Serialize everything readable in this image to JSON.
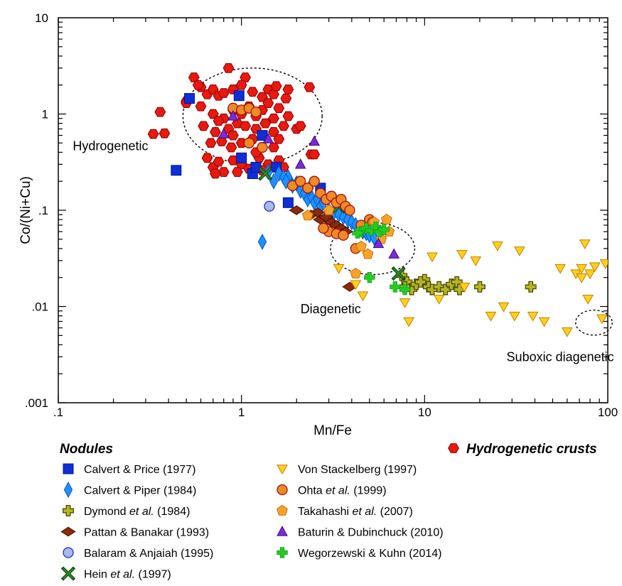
{
  "chart_data": {
    "type": "scatter",
    "title": "",
    "xlabel": "Mn/Fe",
    "ylabel": "Co/(Ni+Cu)",
    "xscale": "log",
    "yscale": "log",
    "xlim": [
      0.1,
      100
    ],
    "ylim": [
      0.001,
      10
    ],
    "x_ticks": [
      {
        "value": 0.1,
        "label": ".1"
      },
      {
        "value": 1,
        "label": "1"
      },
      {
        "value": 10,
        "label": "10"
      },
      {
        "value": 100,
        "label": "100"
      }
    ],
    "y_ticks": [
      {
        "value": 0.001,
        "label": ".001"
      },
      {
        "value": 0.01,
        "label": ".01"
      },
      {
        "value": 0.1,
        "label": ".1"
      },
      {
        "value": 1,
        "label": "1"
      },
      {
        "value": 10,
        "label": "10"
      }
    ],
    "grid": false,
    "legend_position": "bottom",
    "legend_groups": {
      "nodules": "Nodules",
      "crusts": "Hydrogenetic crusts"
    },
    "regions": [
      {
        "label": "Hydrogenetic",
        "cx": 1.15,
        "cy": 0.95,
        "rx_decades": 0.38,
        "ry_decades": 0.5,
        "label_x": 0.12,
        "label_y": 0.42
      },
      {
        "label": "Diagenetic",
        "cx": 5.2,
        "cy": 0.04,
        "rx_decades": 0.23,
        "ry_decades": 0.27,
        "label_x": 2.1,
        "label_y": 0.0085
      },
      {
        "label": "Suboxic diagenetic",
        "cx": 84,
        "cy": 0.0068,
        "rx_decades": 0.1,
        "ry_decades": 0.13,
        "label_x": 28,
        "label_y": 0.0027
      }
    ],
    "series": [
      {
        "name": "Hydrogenetic crusts",
        "name_italic": "",
        "name_end": "",
        "group": "crusts",
        "marker": "hexagon",
        "color": "#e8190f",
        "edge": "#8b0000",
        "points": [
          [
            0.33,
            0.62
          ],
          [
            0.36,
            1.05
          ],
          [
            0.38,
            0.63
          ],
          [
            0.5,
            1.35
          ],
          [
            0.55,
            2.4
          ],
          [
            0.6,
            1.9
          ],
          [
            0.65,
            1.6
          ],
          [
            0.7,
            1.8
          ],
          [
            0.75,
            1.55
          ],
          [
            0.8,
            1.65
          ],
          [
            0.85,
            3.0
          ],
          [
            0.9,
            1.8
          ],
          [
            1.05,
            2.4
          ],
          [
            1.15,
            1.7
          ],
          [
            1.3,
            1.5
          ],
          [
            1.4,
            1.8
          ],
          [
            1.5,
            1.6
          ],
          [
            1.75,
            1.45
          ],
          [
            1.55,
            1.95
          ],
          [
            1.8,
            1.8
          ],
          [
            0.6,
            1.2
          ],
          [
            0.7,
            1.0
          ],
          [
            0.8,
            0.9
          ],
          [
            0.9,
            1.1
          ],
          [
            1.0,
            1.0
          ],
          [
            1.1,
            1.2
          ],
          [
            1.2,
            0.95
          ],
          [
            1.3,
            1.1
          ],
          [
            1.4,
            1.3
          ],
          [
            1.5,
            0.9
          ],
          [
            1.6,
            1.15
          ],
          [
            1.8,
            0.95
          ],
          [
            0.62,
            0.75
          ],
          [
            0.72,
            0.65
          ],
          [
            0.85,
            0.7
          ],
          [
            0.95,
            0.8
          ],
          [
            1.05,
            0.75
          ],
          [
            1.2,
            0.7
          ],
          [
            1.35,
            0.8
          ],
          [
            1.5,
            0.65
          ],
          [
            1.6,
            0.55
          ],
          [
            2.0,
            0.7
          ],
          [
            2.1,
            0.75
          ],
          [
            0.68,
            0.5
          ],
          [
            0.78,
            0.52
          ],
          [
            0.88,
            0.45
          ],
          [
            1.0,
            0.5
          ],
          [
            1.15,
            0.55
          ],
          [
            1.3,
            0.45
          ],
          [
            1.5,
            0.45
          ],
          [
            0.65,
            0.35
          ],
          [
            0.7,
            0.28
          ],
          [
            0.75,
            0.32
          ],
          [
            0.8,
            0.25
          ],
          [
            0.9,
            0.33
          ],
          [
            1.0,
            0.3
          ],
          [
            1.1,
            0.27
          ],
          [
            1.25,
            0.35
          ],
          [
            1.4,
            0.3
          ],
          [
            1.6,
            0.33
          ],
          [
            1.7,
            0.28
          ],
          [
            0.72,
            0.24
          ],
          [
            0.95,
            0.25
          ],
          [
            1.3,
            0.26
          ],
          [
            2.4,
            0.38
          ],
          [
            2.5,
            0.38
          ],
          [
            2.35,
            1.9
          ],
          [
            0.5,
            1.3
          ],
          [
            0.58,
            2.0
          ],
          [
            1.0,
            2.0
          ],
          [
            0.9,
            0.6
          ],
          [
            1.2,
            0.4
          ],
          [
            0.75,
            0.85
          ],
          [
            1.7,
            0.75
          ]
        ]
      },
      {
        "name": "Calvert & Price (1977)",
        "name_italic": "",
        "name_end": "",
        "group": "nodules",
        "marker": "square",
        "color": "#0d2ed9",
        "edge": "#001a80",
        "points": [
          [
            0.44,
            0.26
          ],
          [
            0.52,
            1.45
          ],
          [
            0.97,
            1.55
          ],
          [
            1.0,
            0.35
          ],
          [
            1.15,
            0.24
          ],
          [
            1.2,
            0.28
          ],
          [
            1.3,
            0.6
          ],
          [
            1.55,
            0.28
          ],
          [
            1.8,
            0.12
          ],
          [
            2.7,
            0.17
          ],
          [
            3.5,
            0.11
          ]
        ]
      },
      {
        "name": "Calvert & Piper (1984)",
        "name_italic": "",
        "name_end": "",
        "group": "nodules",
        "marker": "diamond",
        "color": "#1e90ff",
        "edge": "#0055cc",
        "points": [
          [
            1.3,
            0.047
          ],
          [
            1.4,
            0.25
          ],
          [
            1.5,
            0.2
          ],
          [
            1.6,
            0.24
          ],
          [
            1.7,
            0.22
          ],
          [
            1.8,
            0.22
          ],
          [
            1.9,
            0.18
          ],
          [
            2.0,
            0.19
          ],
          [
            2.1,
            0.16
          ],
          [
            2.2,
            0.15
          ],
          [
            2.3,
            0.13
          ],
          [
            2.4,
            0.14
          ],
          [
            2.5,
            0.12
          ],
          [
            2.6,
            0.13
          ],
          [
            2.7,
            0.11
          ],
          [
            2.8,
            0.12
          ],
          [
            3.0,
            0.1
          ],
          [
            3.2,
            0.095
          ],
          [
            3.4,
            0.09
          ],
          [
            3.6,
            0.085
          ],
          [
            3.8,
            0.08
          ],
          [
            4.0,
            0.075
          ],
          [
            4.2,
            0.07
          ],
          [
            4.4,
            0.065
          ],
          [
            4.6,
            0.06
          ],
          [
            4.8,
            0.058
          ],
          [
            5.0,
            0.055
          ],
          [
            5.3,
            0.052
          ],
          [
            1.75,
            0.2
          ],
          [
            2.35,
            0.17
          ]
        ]
      },
      {
        "name": "Dymond ",
        "name_italic": "et al.",
        "name_end": " (1984)",
        "group": "nodules",
        "marker": "cross",
        "color": "#b5b524",
        "edge": "#4a4a00",
        "points": [
          [
            7.5,
            0.021
          ],
          [
            8.0,
            0.018
          ],
          [
            8.5,
            0.015
          ],
          [
            9.0,
            0.017
          ],
          [
            10.0,
            0.019
          ],
          [
            10.5,
            0.016
          ],
          [
            11.0,
            0.015
          ],
          [
            12.0,
            0.016
          ],
          [
            13.0,
            0.015
          ],
          [
            14.0,
            0.017
          ],
          [
            15.0,
            0.018
          ],
          [
            15.5,
            0.015
          ],
          [
            20.0,
            0.016
          ],
          [
            38.0,
            0.016
          ],
          [
            7.8,
            0.016
          ],
          [
            9.5,
            0.018
          ]
        ]
      },
      {
        "name": "Pattan & Banakar (1993)",
        "name_italic": "",
        "name_end": "",
        "group": "nodules",
        "marker": "diamond-wide",
        "color": "#8b2a0e",
        "edge": "#4a1000",
        "points": [
          [
            2.0,
            0.1
          ],
          [
            2.4,
            0.09
          ],
          [
            2.7,
            0.08
          ],
          [
            2.9,
            0.085
          ],
          [
            3.1,
            0.075
          ],
          [
            3.3,
            0.07
          ],
          [
            3.5,
            0.065
          ],
          [
            3.7,
            0.06
          ],
          [
            3.9,
            0.016
          ],
          [
            2.6,
            0.095
          ]
        ]
      },
      {
        "name": "Balaram & Anjaiah (1995)",
        "name_italic": "",
        "name_end": "",
        "group": "nodules",
        "marker": "circle",
        "color": "#a8b8f0",
        "edge": "#2233aa",
        "points": [
          [
            1.42,
            0.11
          ]
        ]
      },
      {
        "name": "Hein ",
        "name_italic": "et al.",
        "name_end": " (1997)",
        "group": "nodules",
        "marker": "x",
        "color": "#2e8b2e",
        "edge": "#145214",
        "points": [
          [
            1.35,
            0.24
          ],
          [
            3.4,
            0.11
          ],
          [
            7.2,
            0.022
          ]
        ]
      },
      {
        "name": "Von Stackelberg (1997)",
        "name_italic": "",
        "name_end": "",
        "group": "nodules",
        "marker": "triangle-down",
        "color": "#ffd21a",
        "edge": "#cc7a00",
        "points": [
          [
            3.4,
            0.025
          ],
          [
            4.2,
            0.017
          ],
          [
            4.6,
            0.013
          ],
          [
            7.8,
            0.011
          ],
          [
            8.2,
            0.007
          ],
          [
            11.0,
            0.033
          ],
          [
            12.0,
            0.012
          ],
          [
            16.0,
            0.035
          ],
          [
            16.5,
            0.016
          ],
          [
            19.0,
            0.03
          ],
          [
            23.0,
            0.008
          ],
          [
            25.0,
            0.043
          ],
          [
            27.0,
            0.01
          ],
          [
            31.0,
            0.008
          ],
          [
            33.0,
            0.038
          ],
          [
            39.0,
            0.008
          ],
          [
            45.0,
            0.007
          ],
          [
            55.0,
            0.025
          ],
          [
            60.0,
            0.0055
          ],
          [
            67.0,
            0.022
          ],
          [
            72.0,
            0.025
          ],
          [
            75.0,
            0.045
          ],
          [
            78.0,
            0.012
          ],
          [
            80.0,
            0.022
          ],
          [
            85.0,
            0.026
          ],
          [
            93.0,
            0.0075
          ],
          [
            97.0,
            0.028
          ],
          [
            72.0,
            0.02
          ]
        ]
      },
      {
        "name": "Ohta ",
        "name_italic": "et al.",
        "name_end": " (1999)",
        "group": "nodules",
        "marker": "circle",
        "color": "#f08a24",
        "edge": "#a01010",
        "points": [
          [
            0.9,
            1.15
          ],
          [
            1.0,
            1.1
          ],
          [
            1.1,
            1.15
          ],
          [
            1.2,
            1.05
          ],
          [
            1.1,
            0.5
          ],
          [
            1.3,
            0.45
          ],
          [
            1.9,
            0.18
          ],
          [
            2.1,
            0.2
          ],
          [
            2.3,
            0.17
          ],
          [
            2.5,
            0.2
          ],
          [
            2.7,
            0.15
          ],
          [
            2.9,
            0.13
          ],
          [
            3.1,
            0.14
          ],
          [
            3.3,
            0.12
          ],
          [
            3.5,
            0.13
          ],
          [
            3.7,
            0.11
          ],
          [
            3.9,
            0.1
          ],
          [
            3.0,
            0.06
          ],
          [
            3.3,
            0.057
          ],
          [
            3.6,
            0.055
          ],
          [
            4.2,
            0.04
          ],
          [
            4.5,
            0.07
          ],
          [
            5.0,
            0.08
          ],
          [
            5.2,
            0.075
          ],
          [
            2.8,
            0.065
          ]
        ]
      },
      {
        "name": "Takahashi ",
        "name_italic": "et al.",
        "name_end": " (2007)",
        "group": "nodules",
        "marker": "pentagon",
        "color": "#fba22b",
        "edge": "#c97000",
        "points": [
          [
            2.3,
            0.088
          ],
          [
            4.2,
            0.022
          ],
          [
            4.5,
            0.042
          ],
          [
            4.9,
            0.035
          ],
          [
            5.3,
            0.075
          ],
          [
            6.2,
            0.08
          ],
          [
            6.4,
            0.06
          ],
          [
            5.8,
            0.05
          ],
          [
            3.0,
            0.1
          ]
        ]
      },
      {
        "name": "Baturin & Dubinchuck (2010)",
        "name_italic": "",
        "name_end": "",
        "group": "nodules",
        "marker": "triangle-up",
        "color": "#7a2bd9",
        "edge": "#3b0a80",
        "points": [
          [
            0.8,
            0.62
          ],
          [
            0.9,
            0.95
          ],
          [
            1.4,
            0.55
          ],
          [
            2.1,
            0.3
          ],
          [
            2.5,
            0.52
          ],
          [
            5.6,
            0.045
          ],
          [
            6.8,
            0.035
          ]
        ]
      },
      {
        "name": "Wegorzewski & Kuhn (2014)",
        "name_italic": "",
        "name_end": "",
        "group": "nodules",
        "marker": "plus",
        "color": "#22cc22",
        "edge": "#118811",
        "points": [
          [
            4.5,
            0.06
          ],
          [
            4.8,
            0.065
          ],
          [
            5.1,
            0.062
          ],
          [
            5.4,
            0.067
          ],
          [
            5.7,
            0.06
          ],
          [
            6.0,
            0.063
          ],
          [
            5.0,
            0.02
          ],
          [
            6.9,
            0.016
          ],
          [
            7.8,
            0.015
          ],
          [
            4.3,
            0.058
          ]
        ]
      }
    ]
  }
}
